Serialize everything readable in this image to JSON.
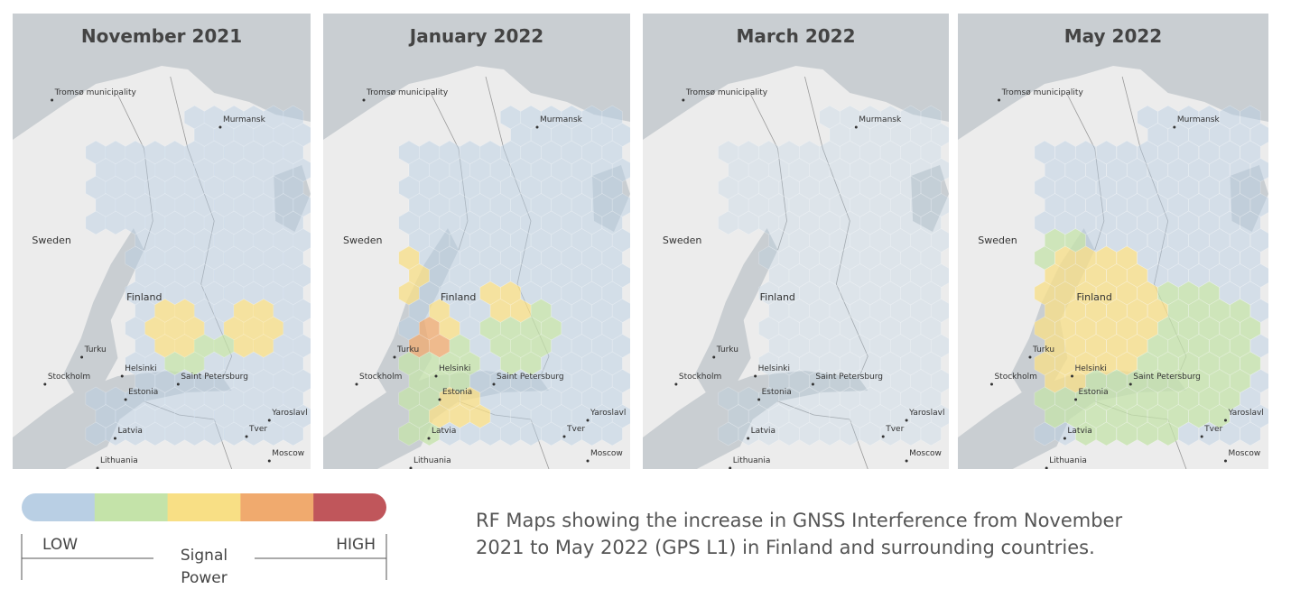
{
  "panels": [
    {
      "title": "November 2021"
    },
    {
      "title": "January 2022"
    },
    {
      "title": "March 2022"
    },
    {
      "title": "May 2022"
    }
  ],
  "place_labels": [
    "Tromsø municipality",
    "Murmansk",
    "Sweden",
    "Finland",
    "Turku",
    "Helsinki",
    "Stockholm",
    "Saint Petersburg",
    "Estonia",
    "Latvia",
    "Lithuania",
    "Tver",
    "Moscow",
    "Yaroslavl"
  ],
  "legend": {
    "colors": [
      "#b9cfe4",
      "#c4e3a9",
      "#f8df85",
      "#f0aa6e",
      "#c0565b"
    ],
    "low": "LOW",
    "high": "HIGH",
    "title": [
      "Signal",
      "Power"
    ]
  },
  "caption": [
    "RF Maps showing the increase in GNSS Interference from November",
    "2021 to May 2022 (GPS L1) in Finland and surrounding countries."
  ]
}
